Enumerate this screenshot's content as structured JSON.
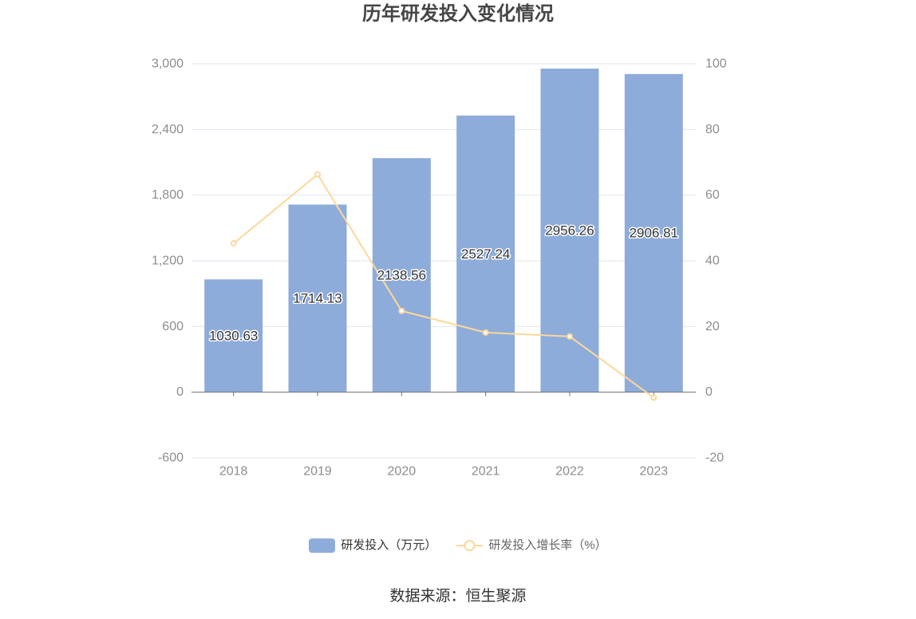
{
  "chart_data": {
    "type": "bar",
    "title": "历年研发投入变化情况",
    "categories": [
      "2018",
      "2019",
      "2020",
      "2021",
      "2022",
      "2023"
    ],
    "series": [
      {
        "name": "研发投入（万元）",
        "type": "bar",
        "y_axis": "left",
        "values": [
          1030.63,
          1714.13,
          2138.56,
          2527.24,
          2956.26,
          2906.81
        ],
        "data_labels": true,
        "color": "#8eacda"
      },
      {
        "name": "研发投入增长率（%）",
        "type": "line",
        "y_axis": "right",
        "values": [
          45.3,
          66.32,
          24.76,
          18.17,
          16.98,
          -1.67
        ],
        "data_labels": false,
        "color": "#fbd89b"
      }
    ],
    "y_left": {
      "min": -600,
      "max": 3000,
      "tick_labels": [
        "-600",
        "0",
        "600",
        "1,200",
        "1,800",
        "2,400",
        "3,000"
      ]
    },
    "y_right": {
      "min": -20,
      "max": 100,
      "tick_labels": [
        "-20",
        "0",
        "20",
        "40",
        "60",
        "80",
        "100"
      ]
    },
    "grid": true,
    "legend_position": "bottom"
  },
  "source": "数据来源：恒生聚源",
  "colors": {
    "axis_label": "#8d8d8d",
    "grid": "#e0e6f1",
    "axis_line": "#6e7079",
    "data_label": "#333333"
  }
}
